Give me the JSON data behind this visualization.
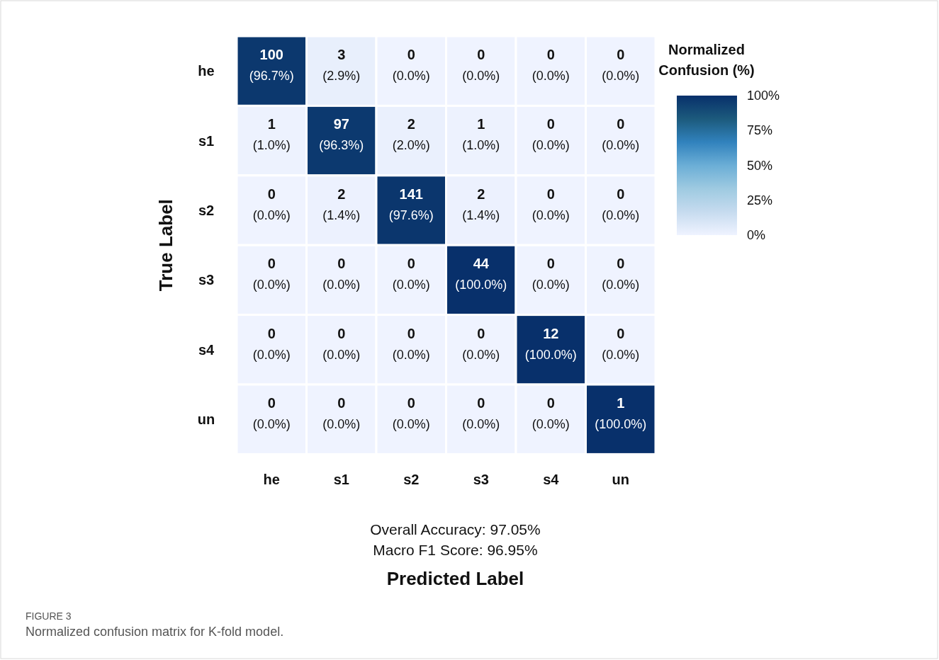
{
  "chart_data": {
    "type": "heatmap",
    "categories": [
      "he",
      "s1",
      "s2",
      "s3",
      "s4",
      "un"
    ],
    "y_categories": [
      "he",
      "s1",
      "s2",
      "s3",
      "s4",
      "un"
    ],
    "cells": [
      [
        96.7,
        2.9,
        0.0,
        0.0,
        0.0,
        0.0
      ],
      [
        1.0,
        96.3,
        2.0,
        1.0,
        0.0,
        0.0
      ],
      [
        0.0,
        1.4,
        97.6,
        1.4,
        0.0,
        0.0
      ],
      [
        0.0,
        0.0,
        0.0,
        100.0,
        0.0,
        0.0
      ],
      [
        0.0,
        0.0,
        0.0,
        0.0,
        100.0,
        0.0
      ],
      [
        0.0,
        0.0,
        0.0,
        0.0,
        0.0,
        100.0
      ]
    ],
    "cell_labels": [
      [
        "100\n(96.7%)",
        "3\n(2.9%)",
        "0\n(0.0%)",
        "0\n(0.0%)",
        "0\n(0.0%)",
        "0\n(0.0%)"
      ],
      [
        "1\n(1.0%)",
        "97\n(96.3%)",
        "2\n(2.0%)",
        "1\n(1.0%)",
        "0\n(0.0%)",
        "0\n(0.0%)"
      ],
      [
        "0\n(0.0%)",
        "2\n(1.4%)",
        "141\n(97.6%)",
        "2\n(1.4%)",
        "0\n(0.0%)",
        "0\n(0.0%)"
      ],
      [
        "0\n(0.0%)",
        "0\n(0.0%)",
        "0\n(0.0%)",
        "44\n(100.0%)",
        "0\n(0.0%)",
        "0\n(0.0%)"
      ],
      [
        "0\n(0.0%)",
        "0\n(0.0%)",
        "0\n(0.0%)",
        "0\n(0.0%)",
        "12\n(100.0%)",
        "0\n(0.0%)"
      ],
      [
        "0\n(0.0%)",
        "0\n(0.0%)",
        "0\n(0.0%)",
        "0\n(0.0%)",
        "0\n(0.0%)",
        "1\n(100.0%)"
      ]
    ],
    "clim": [
      0,
      100
    ],
    "cticks": [
      {
        "value": 0,
        "label": "0%"
      },
      {
        "value": 25,
        "label": "25%"
      },
      {
        "value": 50,
        "label": "50%"
      },
      {
        "value": 75,
        "label": "75%"
      },
      {
        "value": 100,
        "label": "100%"
      }
    ],
    "colors": [
      "#eff3ff",
      "#c6dbef",
      "#9ecae1",
      "#6baed6",
      "#3182bd",
      "#1c5a7c",
      "#08306b"
    ],
    "clabel": "Normalized\nConfusion (%)",
    "xlabel": "Predicted Label",
    "ylabel": "True Label",
    "annotations": [
      "Overall Accuracy: 97.05%",
      "Macro F1 Score: 96.95%",
      "FIGURE 3",
      "Normalized confusion matrix for K-fold model."
    ]
  }
}
